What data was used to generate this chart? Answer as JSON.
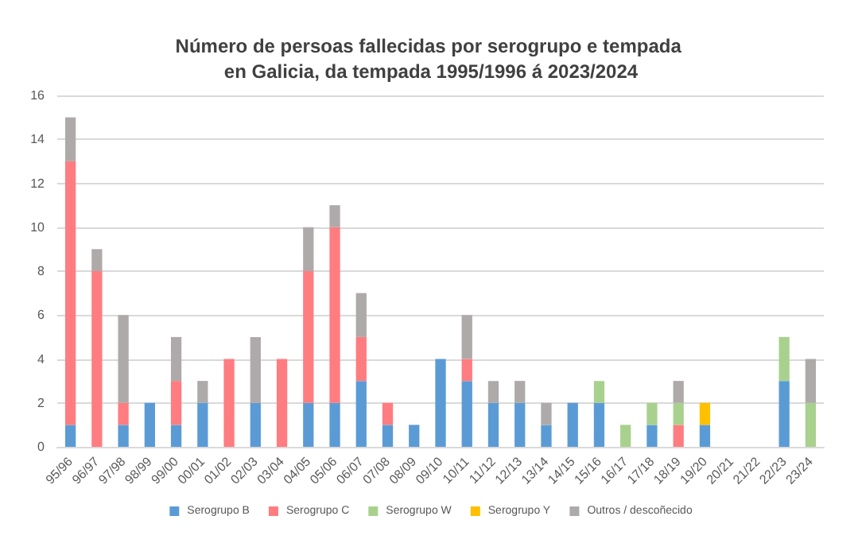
{
  "chart_data": {
    "type": "bar",
    "title": "Número de persoas fallecidas por serogrupo e tempada en Galicia, da tempada 1995/1996 á 2023/2024",
    "categories": [
      "95/96",
      "96/97",
      "97/98",
      "98/99",
      "99/00",
      "00/01",
      "01/02",
      "02/03",
      "03/04",
      "04/05",
      "05/06",
      "06/07",
      "07/08",
      "08/09",
      "09/10",
      "10/11",
      "11/12",
      "12/13",
      "13/14",
      "14/15",
      "15/16",
      "16/17",
      "17/18",
      "18/19",
      "19/20",
      "20/21",
      "21/22",
      "22/23",
      "23/24"
    ],
    "stacked": true,
    "series": [
      {
        "name": "Serogrupo B",
        "color": "#5b9bd5",
        "values": [
          1,
          0,
          1,
          2,
          1,
          2,
          0,
          2,
          0,
          2,
          2,
          3,
          1,
          1,
          4,
          3,
          2,
          2,
          1,
          2,
          2,
          0,
          1,
          0,
          1,
          0,
          0,
          3,
          0
        ]
      },
      {
        "name": "Serogrupo C",
        "color": "#ff7c80",
        "values": [
          12,
          8,
          1,
          0,
          2,
          0,
          4,
          0,
          4,
          6,
          8,
          2,
          1,
          0,
          0,
          1,
          0,
          0,
          0,
          0,
          0,
          0,
          0,
          1,
          0,
          0,
          0,
          0,
          0
        ]
      },
      {
        "name": "Serogrupo W",
        "color": "#a9d18e",
        "values": [
          0,
          0,
          0,
          0,
          0,
          0,
          0,
          0,
          0,
          0,
          0,
          0,
          0,
          0,
          0,
          0,
          0,
          0,
          0,
          0,
          1,
          1,
          1,
          1,
          0,
          0,
          0,
          2,
          2
        ]
      },
      {
        "name": "Serogrupo Y",
        "color": "#ffc000",
        "values": [
          0,
          0,
          0,
          0,
          0,
          0,
          0,
          0,
          0,
          0,
          0,
          0,
          0,
          0,
          0,
          0,
          0,
          0,
          0,
          0,
          0,
          0,
          0,
          0,
          1,
          0,
          0,
          0,
          0
        ]
      },
      {
        "name": "Outros / descoñecido",
        "color": "#aeaaaa",
        "values": [
          2,
          1,
          4,
          0,
          2,
          1,
          0,
          3,
          0,
          2,
          1,
          2,
          0,
          0,
          0,
          2,
          1,
          1,
          1,
          0,
          0,
          0,
          0,
          1,
          0,
          0,
          0,
          0,
          2
        ]
      }
    ],
    "ylim": [
      0,
      16
    ],
    "yticks": [
      0,
      2,
      4,
      6,
      8,
      10,
      12,
      14,
      16
    ],
    "grid": "y",
    "legend": "bottom"
  }
}
